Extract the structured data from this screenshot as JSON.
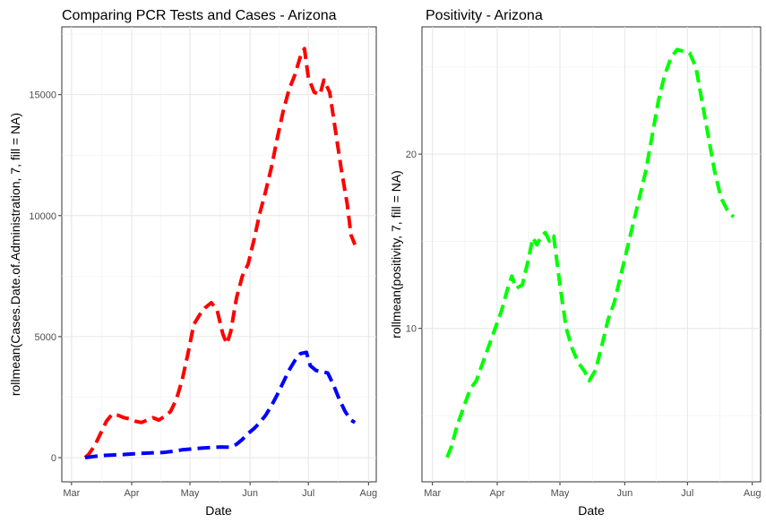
{
  "chart_data": [
    {
      "type": "line",
      "title": "Comparing PCR Tests and Cases - Arizona",
      "xlabel": "Date",
      "ylabel": "rollmean(Cases.Date.of.Administration, 7, fill = NA)",
      "x_ticks": [
        "Mar",
        "Apr",
        "May",
        "Jun",
        "Jul",
        "Aug"
      ],
      "y_ticks": [
        0,
        5000,
        10000,
        15000
      ],
      "xlim": [
        "2020-02-25",
        "2020-08-05"
      ],
      "ylim": [
        -1000,
        17800
      ],
      "grid": true,
      "legend": "none",
      "line_style": "dashed",
      "series": [
        {
          "color": "#ff0000",
          "points": [
            [
              "2020-03-08",
              0
            ],
            [
              "2020-03-10",
              150
            ],
            [
              "2020-03-13",
              500
            ],
            [
              "2020-03-16",
              1000
            ],
            [
              "2020-03-19",
              1500
            ],
            [
              "2020-03-22",
              1800
            ],
            [
              "2020-03-25",
              1750
            ],
            [
              "2020-03-28",
              1650
            ],
            [
              "2020-03-31",
              1600
            ],
            [
              "2020-04-03",
              1500
            ],
            [
              "2020-04-06",
              1450
            ],
            [
              "2020-04-09",
              1550
            ],
            [
              "2020-04-12",
              1650
            ],
            [
              "2020-04-15",
              1550
            ],
            [
              "2020-04-18",
              1700
            ],
            [
              "2020-04-21",
              1900
            ],
            [
              "2020-04-24",
              2400
            ],
            [
              "2020-04-27",
              3200
            ],
            [
              "2020-04-30",
              4300
            ],
            [
              "2020-05-03",
              5500
            ],
            [
              "2020-05-06",
              5900
            ],
            [
              "2020-05-09",
              6200
            ],
            [
              "2020-05-12",
              6400
            ],
            [
              "2020-05-15",
              6100
            ],
            [
              "2020-05-18",
              5100
            ],
            [
              "2020-05-20",
              4700
            ],
            [
              "2020-05-22",
              5200
            ],
            [
              "2020-05-25",
              6600
            ],
            [
              "2020-05-28",
              7500
            ],
            [
              "2020-05-31",
              8000
            ],
            [
              "2020-06-03",
              9000
            ],
            [
              "2020-06-06",
              10100
            ],
            [
              "2020-06-09",
              11000
            ],
            [
              "2020-06-12",
              12000
            ],
            [
              "2020-06-15",
              13200
            ],
            [
              "2020-06-18",
              14300
            ],
            [
              "2020-06-21",
              15200
            ],
            [
              "2020-06-24",
              15800
            ],
            [
              "2020-06-27",
              16600
            ],
            [
              "2020-06-29",
              16900
            ],
            [
              "2020-07-01",
              15700
            ],
            [
              "2020-07-04",
              15100
            ],
            [
              "2020-07-07",
              15000
            ],
            [
              "2020-07-09",
              15600
            ],
            [
              "2020-07-12",
              15100
            ],
            [
              "2020-07-15",
              13500
            ],
            [
              "2020-07-18",
              11900
            ],
            [
              "2020-07-21",
              10500
            ],
            [
              "2020-07-23",
              9200
            ],
            [
              "2020-07-25",
              8800
            ]
          ]
        },
        {
          "color": "#0000ff",
          "points": [
            [
              "2020-03-08",
              0
            ],
            [
              "2020-03-13",
              50
            ],
            [
              "2020-03-18",
              90
            ],
            [
              "2020-03-23",
              110
            ],
            [
              "2020-03-28",
              130
            ],
            [
              "2020-04-02",
              160
            ],
            [
              "2020-04-07",
              180
            ],
            [
              "2020-04-12",
              200
            ],
            [
              "2020-04-17",
              210
            ],
            [
              "2020-04-22",
              260
            ],
            [
              "2020-04-27",
              320
            ],
            [
              "2020-05-02",
              360
            ],
            [
              "2020-05-07",
              390
            ],
            [
              "2020-05-12",
              420
            ],
            [
              "2020-05-17",
              440
            ],
            [
              "2020-05-22",
              430
            ],
            [
              "2020-05-25",
              550
            ],
            [
              "2020-05-28",
              750
            ],
            [
              "2020-05-31",
              1000
            ],
            [
              "2020-06-03",
              1200
            ],
            [
              "2020-06-06",
              1450
            ],
            [
              "2020-06-09",
              1750
            ],
            [
              "2020-06-12",
              2150
            ],
            [
              "2020-06-15",
              2600
            ],
            [
              "2020-06-18",
              3100
            ],
            [
              "2020-06-21",
              3600
            ],
            [
              "2020-06-24",
              4000
            ],
            [
              "2020-06-27",
              4300
            ],
            [
              "2020-06-30",
              4350
            ],
            [
              "2020-07-02",
              3800
            ],
            [
              "2020-07-05",
              3600
            ],
            [
              "2020-07-08",
              3550
            ],
            [
              "2020-07-11",
              3500
            ],
            [
              "2020-07-14",
              3000
            ],
            [
              "2020-07-17",
              2400
            ],
            [
              "2020-07-20",
              1900
            ],
            [
              "2020-07-23",
              1550
            ],
            [
              "2020-07-25",
              1450
            ]
          ]
        }
      ]
    },
    {
      "type": "line",
      "title": "Positivity - Arizona",
      "xlabel": "Date",
      "ylabel": "rollmean(positivity, 7, fill = NA)",
      "x_ticks": [
        "Mar",
        "Apr",
        "May",
        "Jun",
        "Jul",
        "Aug"
      ],
      "y_ticks": [
        10,
        20
      ],
      "xlim": [
        "2020-02-25",
        "2020-08-05"
      ],
      "ylim": [
        1.2,
        27.3
      ],
      "grid": true,
      "legend": "none",
      "line_style": "dashed",
      "series": [
        {
          "color": "#00ff00",
          "points": [
            [
              "2020-03-08",
              2.6
            ],
            [
              "2020-03-10",
              3.2
            ],
            [
              "2020-03-13",
              4.5
            ],
            [
              "2020-03-16",
              5.5
            ],
            [
              "2020-03-19",
              6.5
            ],
            [
              "2020-03-22",
              7.0
            ],
            [
              "2020-03-25",
              8.0
            ],
            [
              "2020-03-28",
              9.0
            ],
            [
              "2020-03-31",
              10.0
            ],
            [
              "2020-04-03",
              11.0
            ],
            [
              "2020-04-06",
              12.3
            ],
            [
              "2020-04-08",
              13.0
            ],
            [
              "2020-04-10",
              12.3
            ],
            [
              "2020-04-13",
              12.5
            ],
            [
              "2020-04-16",
              14.0
            ],
            [
              "2020-04-18",
              15.2
            ],
            [
              "2020-04-20",
              14.8
            ],
            [
              "2020-04-22",
              15.3
            ],
            [
              "2020-04-24",
              15.5
            ],
            [
              "2020-04-26",
              15.0
            ],
            [
              "2020-04-28",
              15.3
            ],
            [
              "2020-05-01",
              12.5
            ],
            [
              "2020-05-04",
              10.0
            ],
            [
              "2020-05-07",
              8.8
            ],
            [
              "2020-05-10",
              8.0
            ],
            [
              "2020-05-13",
              7.5
            ],
            [
              "2020-05-15",
              7.0
            ],
            [
              "2020-05-18",
              7.6
            ],
            [
              "2020-05-21",
              9.0
            ],
            [
              "2020-05-24",
              10.5
            ],
            [
              "2020-05-27",
              11.5
            ],
            [
              "2020-05-30",
              13.0
            ],
            [
              "2020-06-02",
              14.5
            ],
            [
              "2020-06-05",
              16.0
            ],
            [
              "2020-06-08",
              17.5
            ],
            [
              "2020-06-11",
              19.0
            ],
            [
              "2020-06-14",
              21.0
            ],
            [
              "2020-06-17",
              23.0
            ],
            [
              "2020-06-20",
              24.5
            ],
            [
              "2020-06-23",
              25.5
            ],
            [
              "2020-06-26",
              26.0
            ],
            [
              "2020-06-29",
              25.9
            ],
            [
              "2020-07-02",
              25.8
            ],
            [
              "2020-07-05",
              25.0
            ],
            [
              "2020-07-08",
              23.0
            ],
            [
              "2020-07-11",
              21.0
            ],
            [
              "2020-07-14",
              19.0
            ],
            [
              "2020-07-17",
              17.5
            ],
            [
              "2020-07-20",
              16.8
            ],
            [
              "2020-07-23",
              16.4
            ]
          ]
        }
      ]
    }
  ]
}
